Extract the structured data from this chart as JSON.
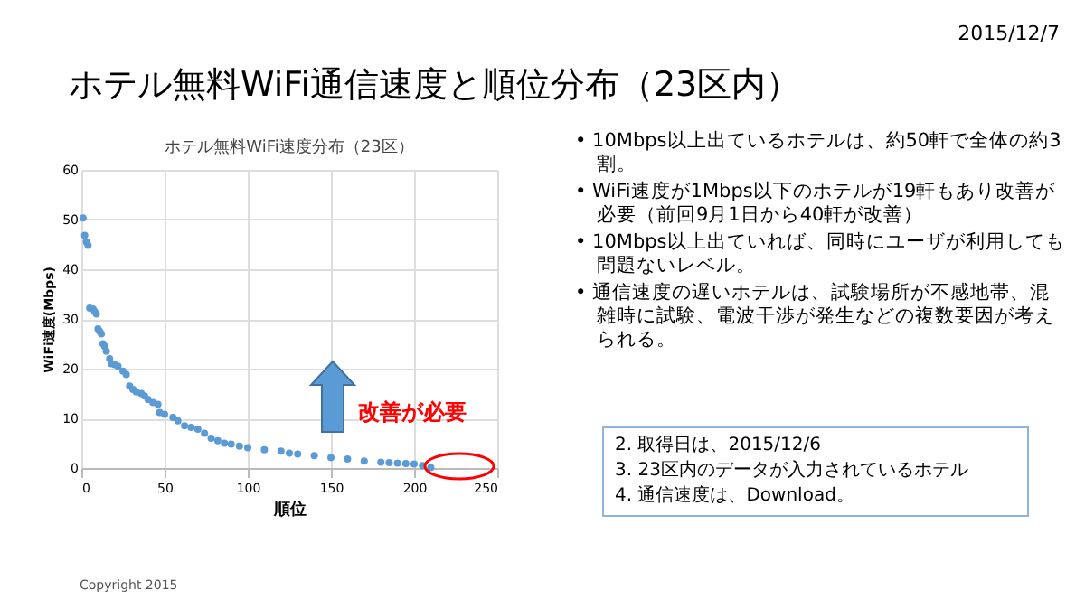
{
  "chart_data": {
    "type": "scatter",
    "title": "ホテル無料WiFi通信速度と順位分布（23区内）",
    "subtitle": "ホテル無料WiFi速度分布（23区）",
    "xlabel": "順位",
    "ylabel": "WiFi速度(Mbps)",
    "x": [
      1,
      2,
      3,
      4,
      5,
      7,
      8,
      9,
      10,
      11,
      12,
      13,
      14,
      15,
      17,
      18,
      20,
      22,
      25,
      27,
      29,
      31,
      33,
      36,
      38,
      40,
      43,
      46,
      47,
      50,
      55,
      58,
      62,
      66,
      70,
      74,
      78,
      82,
      86,
      90,
      95,
      100,
      110,
      120,
      125,
      130,
      140,
      150,
      160,
      170,
      180,
      185,
      190,
      195,
      200,
      205,
      210
    ],
    "series": [
      {
        "color": "#5b9bd5",
        "values": [
          50.3,
          46.8,
          45.5,
          44.8,
          32.2,
          32,
          31.5,
          31,
          28,
          27.5,
          27,
          25,
          24.5,
          23.5,
          22,
          21,
          20.8,
          20.5,
          19.5,
          18.8,
          16.5,
          15.8,
          15.3,
          15,
          14.5,
          13.8,
          13.2,
          12.8,
          11.2,
          10.8,
          10.2,
          9.5,
          8.5,
          8.2,
          7.8,
          7,
          6,
          5.5,
          5,
          4.8,
          4.4,
          4.1,
          3.7,
          3.4,
          3,
          2.8,
          2.5,
          2.1,
          1.8,
          1.4,
          1.2,
          1.1,
          1,
          0.9,
          0.8,
          0.5,
          0.1
        ]
      }
    ],
    "xlim": [
      0,
      250
    ],
    "xticks": [
      0,
      50,
      100,
      150,
      200,
      250
    ],
    "ylim": [
      0,
      60
    ],
    "yticks": [
      0,
      10,
      20,
      30,
      40,
      50,
      60
    ],
    "grid": true,
    "marker": "circle",
    "annotations": [
      "2015/12/7",
      "• 10Mbps以上出ているホテルは、約50軒で全体の約3割。",
      "• WiFi速度が1Mbps以下のホテルが19軒もあり改善が必要（前回9月1日から40軒が改善）",
      "• 10Mbps以上出ていれば、同時にユーザが利用しても問題ないレベル。",
      "• 通信速度の遅いホテルは、試験場所が不感地帯、混雑時に試験、電波干渉が発生などの複数要因が考えられる。",
      "2. 取得日は、2015/12/6",
      "3. 23区内のデータが入力されているホテル",
      "4. 通信速度は、Download。",
      "Copyright 2015",
      "改善が必要"
    ]
  }
}
